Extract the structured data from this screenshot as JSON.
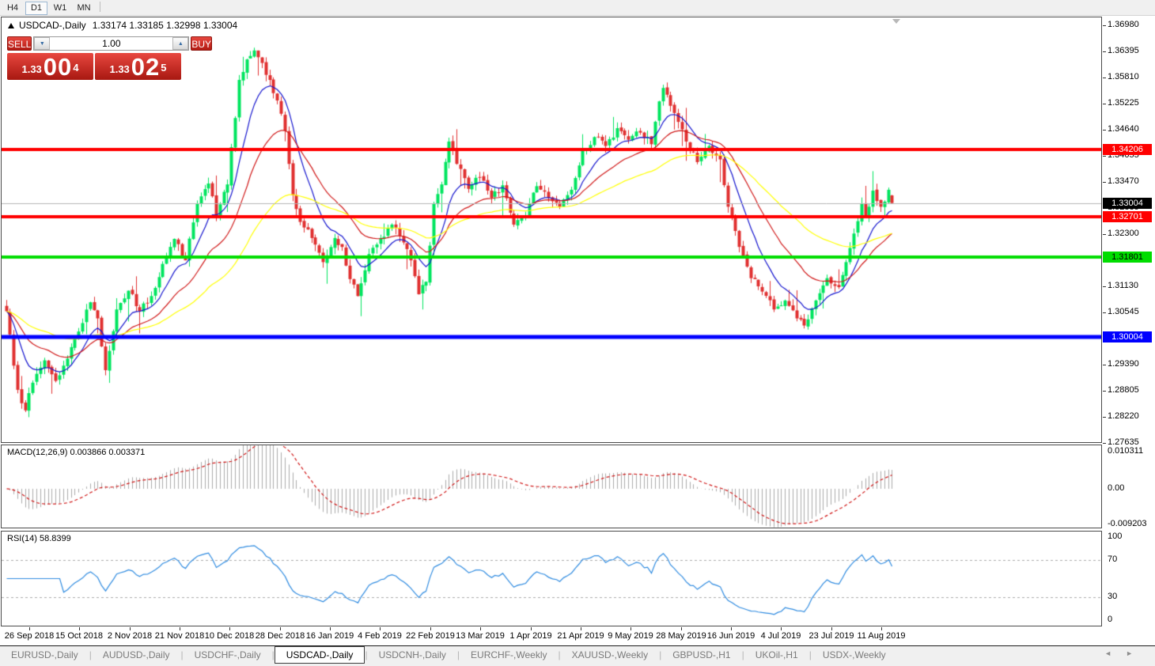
{
  "window": {
    "symbol": "USDCAD-,Daily",
    "ohlc_text": "1.33174  1.33185  1.32998  1.33004"
  },
  "toolbar": {
    "timeframes": [
      {
        "label": "H4",
        "active": false
      },
      {
        "label": "D1",
        "active": true
      },
      {
        "label": "W1",
        "active": false
      },
      {
        "label": "MN",
        "active": false
      }
    ]
  },
  "trade_panel": {
    "sell_label": "SELL",
    "buy_label": "BUY",
    "volume": "1.00",
    "sell_price": {
      "small": "1.33",
      "big": "00",
      "sup": "4"
    },
    "buy_price": {
      "small": "1.33",
      "big": "02",
      "sup": "5"
    }
  },
  "chart_data": {
    "type": "candlestick",
    "symbol": "USDCAD-",
    "timeframe": "Daily",
    "current_ohlc": {
      "open": 1.33174,
      "high": 1.33185,
      "low": 1.32998,
      "close": 1.33004
    },
    "bars_count": 233,
    "close_path_anchors": [
      [
        0,
        1.3058
      ],
      [
        1,
        1.3006
      ],
      [
        3,
        1.2882
      ],
      [
        5,
        1.2836
      ],
      [
        7,
        1.2898
      ],
      [
        10,
        1.2948
      ],
      [
        13,
        1.2902
      ],
      [
        16,
        1.2952
      ],
      [
        18,
        1.2996
      ],
      [
        22,
        1.3078
      ],
      [
        24,
        1.3042
      ],
      [
        26,
        1.2926
      ],
      [
        29,
        1.3062
      ],
      [
        32,
        1.3104
      ],
      [
        35,
        1.3058
      ],
      [
        38,
        1.3092
      ],
      [
        41,
        1.3164
      ],
      [
        44,
        1.322
      ],
      [
        47,
        1.3172
      ],
      [
        50,
        1.3298
      ],
      [
        53,
        1.3344
      ],
      [
        55,
        1.3272
      ],
      [
        58,
        1.3342
      ],
      [
        61,
        1.3576
      ],
      [
        63,
        1.3622
      ],
      [
        65,
        1.3642
      ],
      [
        67,
        1.3614
      ],
      [
        69,
        1.3576
      ],
      [
        71,
        1.353
      ],
      [
        73,
        1.3462
      ],
      [
        75,
        1.3318
      ],
      [
        77,
        1.3258
      ],
      [
        80,
        1.3222
      ],
      [
        83,
        1.3168
      ],
      [
        86,
        1.3222
      ],
      [
        88,
        1.3202
      ],
      [
        90,
        1.313
      ],
      [
        92,
        1.3092
      ],
      [
        95,
        1.3186
      ],
      [
        98,
        1.3222
      ],
      [
        101,
        1.3252
      ],
      [
        104,
        1.3212
      ],
      [
        106,
        1.3172
      ],
      [
        108,
        1.3096
      ],
      [
        110,
        1.3124
      ],
      [
        112,
        1.3298
      ],
      [
        114,
        1.3342
      ],
      [
        116,
        1.3438
      ],
      [
        118,
        1.3388
      ],
      [
        121,
        1.3332
      ],
      [
        124,
        1.3358
      ],
      [
        127,
        1.3312
      ],
      [
        130,
        1.334
      ],
      [
        133,
        1.3252
      ],
      [
        136,
        1.3272
      ],
      [
        139,
        1.3338
      ],
      [
        142,
        1.3312
      ],
      [
        145,
        1.3292
      ],
      [
        148,
        1.333
      ],
      [
        151,
        1.3418
      ],
      [
        154,
        1.3448
      ],
      [
        157,
        1.3428
      ],
      [
        160,
        1.3468
      ],
      [
        163,
        1.3442
      ],
      [
        166,
        1.3458
      ],
      [
        169,
        1.3432
      ],
      [
        171,
        1.3528
      ],
      [
        172,
        1.3558
      ],
      [
        174,
        1.3518
      ],
      [
        176,
        1.3482
      ],
      [
        178,
        1.3438
      ],
      [
        181,
        1.3392
      ],
      [
        184,
        1.3428
      ],
      [
        187,
        1.3398
      ],
      [
        189,
        1.3292
      ],
      [
        192,
        1.3202
      ],
      [
        195,
        1.3132
      ],
      [
        198,
        1.3102
      ],
      [
        201,
        1.3062
      ],
      [
        204,
        1.3082
      ],
      [
        207,
        1.3042
      ],
      [
        209,
        1.3026
      ],
      [
        212,
        1.3082
      ],
      [
        215,
        1.3132
      ],
      [
        218,
        1.3112
      ],
      [
        220,
        1.3168
      ],
      [
        222,
        1.3232
      ],
      [
        224,
        1.3298
      ],
      [
        225,
        1.3272
      ],
      [
        227,
        1.3328
      ],
      [
        229,
        1.3292
      ],
      [
        231,
        1.333
      ],
      [
        232,
        1.33004
      ]
    ],
    "price_range": {
      "top": 1.3716,
      "bottom": 1.27648
    },
    "price_axis_ticks": [
      "1.36980",
      "1.36395",
      "1.35810",
      "1.35225",
      "1.34640",
      "1.34055",
      "1.33470",
      "1.32885",
      "1.32300",
      "1.31715",
      "1.31130",
      "1.30545",
      "1.29390",
      "1.28805",
      "1.28220",
      "1.27635"
    ],
    "hlines": [
      {
        "price": 1.34206,
        "label": "1.34206",
        "color": "#FF0000",
        "text": "#FFFFFF",
        "width": 4
      },
      {
        "price": 1.32701,
        "label": "1.32701",
        "color": "#FF0000",
        "text": "#FFFFFF",
        "width": 4
      },
      {
        "price": 1.31801,
        "label": "1.31801",
        "color": "#00DD00",
        "text": "#000000",
        "width": 4
      },
      {
        "price": 1.30004,
        "label": "1.30004",
        "color": "#0000FF",
        "text": "#FFFFFF",
        "width": 5
      }
    ],
    "bid_line": {
      "price": 1.33004,
      "label": "1.33004",
      "line_color": "#B4B4B4",
      "badge_bg": "#000000",
      "badge_text": "#FFFFFF"
    },
    "x_axis_dates": [
      "26 Sep 2018",
      "15 Oct 2018",
      "2 Nov 2018",
      "21 Nov 2018",
      "10 Dec 2018",
      "28 Dec 2018",
      "16 Jan 2019",
      "4 Feb 2019",
      "22 Feb 2019",
      "13 Mar 2019",
      "1 Apr 2019",
      "21 Apr 2019",
      "9 May 2019",
      "28 May 2019",
      "16 Jun 2019",
      "4 Jul 2019",
      "23 Jul 2019",
      "11 Aug 2019"
    ],
    "moving_averages": [
      {
        "period": 10,
        "color": "#1515CE",
        "name": "fast-ma"
      },
      {
        "period": 24,
        "color": "#D01818",
        "name": "mid-ma"
      },
      {
        "period": 56,
        "color": "#FFFF00",
        "name": "slow-ma"
      }
    ],
    "indicators": {
      "macd": {
        "label": "MACD(12,26,9) 0.003866 0.003371",
        "fast": 12,
        "slow": 26,
        "signal": 9,
        "main_value": 0.003866,
        "signal_value": 0.003371,
        "axis_labels": {
          "top": "0.010311",
          "zero": "0.00",
          "bottom": "-0.009203"
        },
        "range": {
          "max": 0.0103,
          "min": -0.0092
        },
        "hist_color": "#ABABAB",
        "signal_color": "#D01818"
      },
      "rsi": {
        "label": "RSI(14) 58.8399",
        "period": 14,
        "value": 58.8399,
        "levels": [
          100,
          70,
          30,
          0
        ],
        "dashed_levels": [
          70,
          30
        ],
        "line_color": "#2F8BE0",
        "level_color": "#ABABAB"
      }
    },
    "candle_colors": {
      "up": "#00E55F",
      "down": "#E03030"
    }
  },
  "tabs": {
    "items": [
      {
        "label": "EURUSD-,Daily",
        "active": false
      },
      {
        "label": "AUDUSD-,Daily",
        "active": false
      },
      {
        "label": "USDCHF-,Daily",
        "active": false
      },
      {
        "label": "USDCAD-,Daily",
        "active": true
      },
      {
        "label": "USDCNH-,Daily",
        "active": false
      },
      {
        "label": "EURCHF-,Weekly",
        "active": false
      },
      {
        "label": "XAUUSD-,Weekly",
        "active": false
      },
      {
        "label": "GBPUSD-,H1",
        "active": false
      },
      {
        "label": "UKOil-,H1",
        "active": false
      },
      {
        "label": "USDX-,Weekly",
        "active": false
      }
    ],
    "scroll_left_icon": "◄",
    "scroll_right_icon": "►"
  }
}
